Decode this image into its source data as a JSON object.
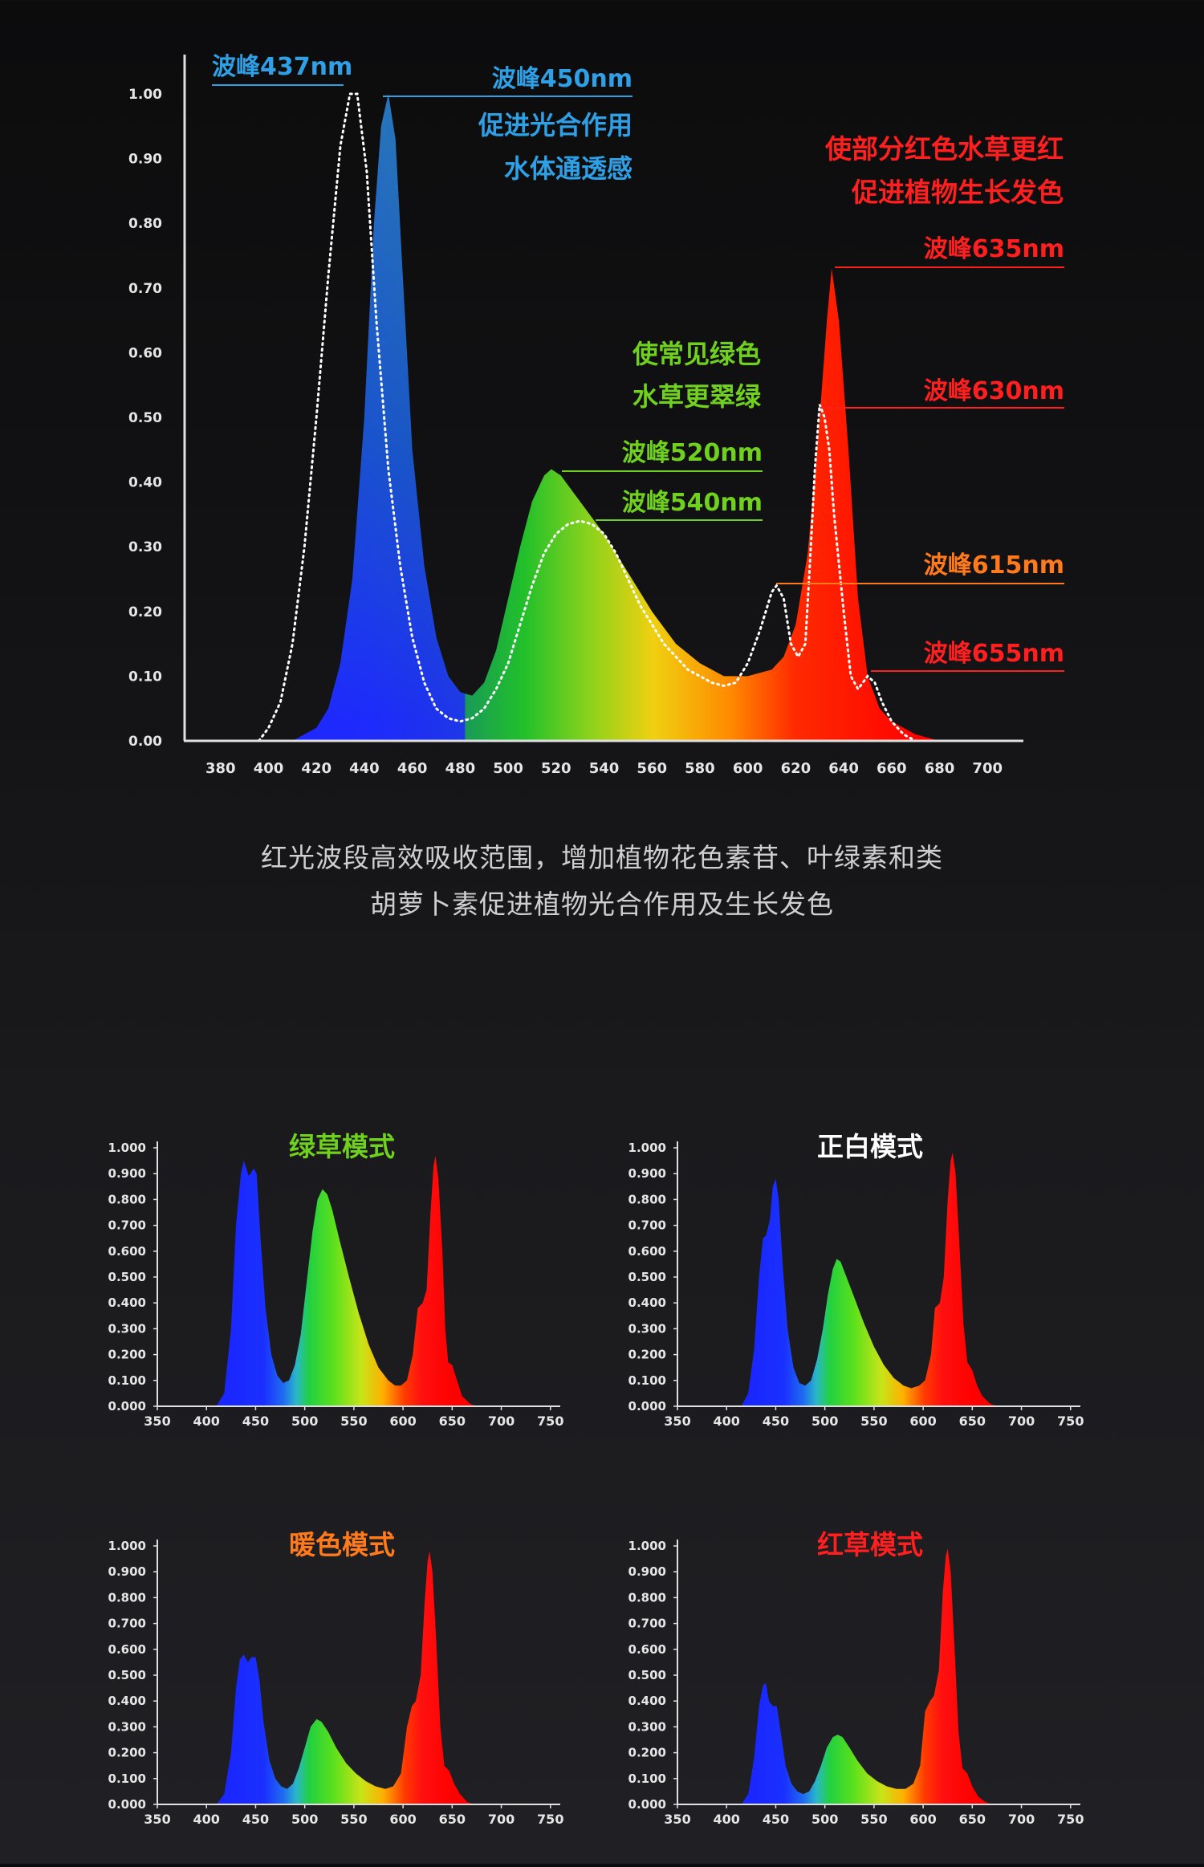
{
  "main_chart": {
    "x_ticks": [
      380,
      400,
      420,
      440,
      460,
      480,
      500,
      520,
      540,
      560,
      580,
      600,
      620,
      640,
      660,
      680,
      700
    ],
    "y_ticks": [
      "0.00",
      "0.10",
      "0.20",
      "0.30",
      "0.40",
      "0.50",
      "0.60",
      "0.70",
      "0.80",
      "0.90",
      "1.00"
    ],
    "annotations": {
      "peak437": "波峰437nm",
      "peak450": "波峰450nm",
      "blue_line1": "促进光合作用",
      "blue_line2": "水体通透感",
      "red_line1": "使部分红色水草更红",
      "red_line2": "促进植物生长发色",
      "peak635": "波峰635nm",
      "green_line1": "使常见绿色",
      "green_line2": "水草更翠绿",
      "peak630": "波峰630nm",
      "peak520": "波峰520nm",
      "peak540": "波峰540nm",
      "peak615": "波峰615nm",
      "peak655": "波峰655nm"
    }
  },
  "caption": {
    "line1": "红光波段高效吸收范围，增加植物花色素苷、叶绿素和类",
    "line2": "胡萝卜素促进植物光合作用及生长发色"
  },
  "small_x_ticks": [
    350,
    400,
    450,
    500,
    550,
    600,
    650,
    700,
    750
  ],
  "small_y_ticks": [
    "0.000",
    "0.100",
    "0.200",
    "0.300",
    "0.400",
    "0.500",
    "0.600",
    "0.700",
    "0.800",
    "0.900",
    "1.000"
  ],
  "colors": {
    "blue_text": "#2f9fe6",
    "green_text": "#6fd11e",
    "red_text": "#ff1f1f",
    "orange_text": "#ff7a1a",
    "white_text": "#ffffff",
    "axis": "#e0e0e0"
  },
  "chart_data": [
    {
      "type": "area",
      "xlim": [
        365,
        715
      ],
      "ylim": [
        0,
        1.0
      ],
      "series": [
        {
          "style": "filled spectrum",
          "points": [
            [
              410,
              0
            ],
            [
              420,
              0.02
            ],
            [
              425,
              0.05
            ],
            [
              430,
              0.12
            ],
            [
              435,
              0.25
            ],
            [
              440,
              0.5
            ],
            [
              444,
              0.8
            ],
            [
              447,
              0.95
            ],
            [
              450,
              1.0
            ],
            [
              453,
              0.93
            ],
            [
              456,
              0.72
            ],
            [
              460,
              0.45
            ],
            [
              465,
              0.27
            ],
            [
              470,
              0.16
            ],
            [
              475,
              0.1
            ],
            [
              480,
              0.075
            ],
            [
              485,
              0.07
            ],
            [
              490,
              0.09
            ],
            [
              495,
              0.14
            ],
            [
              500,
              0.22
            ],
            [
              505,
              0.3
            ],
            [
              510,
              0.37
            ],
            [
              515,
              0.41
            ],
            [
              518,
              0.42
            ],
            [
              522,
              0.41
            ],
            [
              530,
              0.37
            ],
            [
              540,
              0.32
            ],
            [
              550,
              0.26
            ],
            [
              560,
              0.2
            ],
            [
              570,
              0.15
            ],
            [
              580,
              0.12
            ],
            [
              590,
              0.1
            ],
            [
              600,
              0.1
            ],
            [
              610,
              0.11
            ],
            [
              615,
              0.13
            ],
            [
              620,
              0.18
            ],
            [
              625,
              0.29
            ],
            [
              630,
              0.5
            ],
            [
              633,
              0.65
            ],
            [
              635,
              0.73
            ],
            [
              638,
              0.65
            ],
            [
              642,
              0.45
            ],
            [
              646,
              0.22
            ],
            [
              650,
              0.1
            ],
            [
              655,
              0.05
            ],
            [
              660,
              0.03
            ],
            [
              670,
              0.01
            ],
            [
              680,
              0
            ]
          ]
        },
        {
          "style": "dotted white line",
          "points": [
            [
              396,
              0
            ],
            [
              400,
              0.02
            ],
            [
              405,
              0.06
            ],
            [
              410,
              0.15
            ],
            [
              415,
              0.3
            ],
            [
              420,
              0.5
            ],
            [
              425,
              0.72
            ],
            [
              430,
              0.92
            ],
            [
              434,
              1.0
            ],
            [
              437,
              1.0
            ],
            [
              441,
              0.88
            ],
            [
              445,
              0.65
            ],
            [
              450,
              0.42
            ],
            [
              455,
              0.27
            ],
            [
              460,
              0.16
            ],
            [
              465,
              0.09
            ],
            [
              470,
              0.05
            ],
            [
              475,
              0.035
            ],
            [
              480,
              0.03
            ],
            [
              485,
              0.035
            ],
            [
              490,
              0.05
            ],
            [
              495,
              0.08
            ],
            [
              500,
              0.12
            ],
            [
              505,
              0.18
            ],
            [
              510,
              0.24
            ],
            [
              515,
              0.29
            ],
            [
              520,
              0.32
            ],
            [
              525,
              0.335
            ],
            [
              530,
              0.34
            ],
            [
              535,
              0.335
            ],
            [
              540,
              0.32
            ],
            [
              545,
              0.29
            ],
            [
              550,
              0.25
            ],
            [
              555,
              0.21
            ],
            [
              560,
              0.18
            ],
            [
              565,
              0.15
            ],
            [
              570,
              0.13
            ],
            [
              575,
              0.11
            ],
            [
              580,
              0.1
            ],
            [
              585,
              0.09
            ],
            [
              590,
              0.085
            ],
            [
              595,
              0.09
            ],
            [
              600,
              0.12
            ],
            [
              605,
              0.17
            ],
            [
              610,
              0.23
            ],
            [
              612,
              0.24
            ],
            [
              615,
              0.22
            ],
            [
              618,
              0.15
            ],
            [
              621,
              0.13
            ],
            [
              624,
              0.15
            ],
            [
              626,
              0.28
            ],
            [
              628,
              0.42
            ],
            [
              630,
              0.52
            ],
            [
              632,
              0.5
            ],
            [
              634,
              0.45
            ],
            [
              636,
              0.35
            ],
            [
              640,
              0.2
            ],
            [
              643,
              0.1
            ],
            [
              646,
              0.08
            ],
            [
              650,
              0.1
            ],
            [
              653,
              0.09
            ],
            [
              656,
              0.06
            ],
            [
              660,
              0.03
            ],
            [
              665,
              0.01
            ],
            [
              670,
              0
            ]
          ]
        }
      ]
    },
    {
      "type": "area",
      "title": "绿草模式",
      "xlim": [
        350,
        760
      ],
      "ylim": [
        0,
        1.0
      ],
      "points": [
        [
          410,
          0
        ],
        [
          418,
          0.05
        ],
        [
          425,
          0.3
        ],
        [
          430,
          0.7
        ],
        [
          435,
          0.9
        ],
        [
          438,
          0.95
        ],
        [
          443,
          0.89
        ],
        [
          448,
          0.92
        ],
        [
          451,
          0.9
        ],
        [
          455,
          0.65
        ],
        [
          460,
          0.38
        ],
        [
          466,
          0.2
        ],
        [
          472,
          0.12
        ],
        [
          478,
          0.09
        ],
        [
          484,
          0.1
        ],
        [
          490,
          0.16
        ],
        [
          496,
          0.28
        ],
        [
          502,
          0.48
        ],
        [
          508,
          0.68
        ],
        [
          513,
          0.8
        ],
        [
          518,
          0.84
        ],
        [
          523,
          0.82
        ],
        [
          528,
          0.76
        ],
        [
          535,
          0.65
        ],
        [
          545,
          0.5
        ],
        [
          555,
          0.36
        ],
        [
          565,
          0.24
        ],
        [
          575,
          0.15
        ],
        [
          585,
          0.1
        ],
        [
          592,
          0.08
        ],
        [
          598,
          0.08
        ],
        [
          604,
          0.1
        ],
        [
          610,
          0.2
        ],
        [
          615,
          0.38
        ],
        [
          620,
          0.4
        ],
        [
          624,
          0.45
        ],
        [
          628,
          0.75
        ],
        [
          631,
          0.93
        ],
        [
          633,
          0.97
        ],
        [
          636,
          0.88
        ],
        [
          640,
          0.6
        ],
        [
          643,
          0.3
        ],
        [
          646,
          0.17
        ],
        [
          650,
          0.16
        ],
        [
          655,
          0.1
        ],
        [
          660,
          0.04
        ],
        [
          668,
          0.01
        ],
        [
          675,
          0
        ]
      ]
    },
    {
      "type": "area",
      "title": "正白模式",
      "xlim": [
        350,
        760
      ],
      "ylim": [
        0,
        1.0
      ],
      "points": [
        [
          415,
          0
        ],
        [
          422,
          0.05
        ],
        [
          428,
          0.22
        ],
        [
          433,
          0.5
        ],
        [
          437,
          0.65
        ],
        [
          440,
          0.66
        ],
        [
          444,
          0.72
        ],
        [
          447,
          0.85
        ],
        [
          450,
          0.88
        ],
        [
          453,
          0.8
        ],
        [
          457,
          0.55
        ],
        [
          462,
          0.3
        ],
        [
          468,
          0.15
        ],
        [
          474,
          0.09
        ],
        [
          480,
          0.08
        ],
        [
          486,
          0.1
        ],
        [
          492,
          0.18
        ],
        [
          498,
          0.3
        ],
        [
          503,
          0.43
        ],
        [
          508,
          0.53
        ],
        [
          512,
          0.57
        ],
        [
          516,
          0.56
        ],
        [
          522,
          0.5
        ],
        [
          530,
          0.42
        ],
        [
          540,
          0.32
        ],
        [
          550,
          0.23
        ],
        [
          560,
          0.16
        ],
        [
          570,
          0.11
        ],
        [
          580,
          0.08
        ],
        [
          588,
          0.07
        ],
        [
          596,
          0.08
        ],
        [
          602,
          0.1
        ],
        [
          608,
          0.2
        ],
        [
          612,
          0.38
        ],
        [
          617,
          0.4
        ],
        [
          621,
          0.5
        ],
        [
          625,
          0.8
        ],
        [
          628,
          0.95
        ],
        [
          630,
          0.98
        ],
        [
          633,
          0.9
        ],
        [
          637,
          0.62
        ],
        [
          641,
          0.32
        ],
        [
          645,
          0.17
        ],
        [
          650,
          0.14
        ],
        [
          655,
          0.08
        ],
        [
          660,
          0.04
        ],
        [
          668,
          0.01
        ],
        [
          675,
          0
        ]
      ]
    },
    {
      "type": "area",
      "title": "暖色模式",
      "xlim": [
        350,
        760
      ],
      "ylim": [
        0,
        1.0
      ],
      "points": [
        [
          410,
          0
        ],
        [
          418,
          0.04
        ],
        [
          425,
          0.2
        ],
        [
          430,
          0.45
        ],
        [
          434,
          0.56
        ],
        [
          438,
          0.58
        ],
        [
          442,
          0.55
        ],
        [
          446,
          0.57
        ],
        [
          450,
          0.57
        ],
        [
          454,
          0.48
        ],
        [
          458,
          0.32
        ],
        [
          464,
          0.17
        ],
        [
          470,
          0.1
        ],
        [
          476,
          0.07
        ],
        [
          482,
          0.06
        ],
        [
          488,
          0.08
        ],
        [
          494,
          0.14
        ],
        [
          500,
          0.22
        ],
        [
          506,
          0.3
        ],
        [
          512,
          0.33
        ],
        [
          517,
          0.32
        ],
        [
          524,
          0.28
        ],
        [
          532,
          0.22
        ],
        [
          542,
          0.16
        ],
        [
          552,
          0.12
        ],
        [
          562,
          0.09
        ],
        [
          572,
          0.07
        ],
        [
          582,
          0.06
        ],
        [
          590,
          0.07
        ],
        [
          598,
          0.12
        ],
        [
          604,
          0.3
        ],
        [
          609,
          0.38
        ],
        [
          613,
          0.4
        ],
        [
          618,
          0.5
        ],
        [
          622,
          0.78
        ],
        [
          625,
          0.94
        ],
        [
          627,
          0.98
        ],
        [
          630,
          0.9
        ],
        [
          634,
          0.62
        ],
        [
          638,
          0.3
        ],
        [
          642,
          0.15
        ],
        [
          647,
          0.13
        ],
        [
          652,
          0.08
        ],
        [
          658,
          0.04
        ],
        [
          665,
          0.01
        ],
        [
          672,
          0
        ]
      ]
    },
    {
      "type": "area",
      "title": "红草模式",
      "xlim": [
        350,
        760
      ],
      "ylim": [
        0,
        1.0
      ],
      "points": [
        [
          415,
          0
        ],
        [
          422,
          0.04
        ],
        [
          428,
          0.18
        ],
        [
          433,
          0.38
        ],
        [
          437,
          0.46
        ],
        [
          440,
          0.47
        ],
        [
          443,
          0.4
        ],
        [
          447,
          0.38
        ],
        [
          451,
          0.38
        ],
        [
          455,
          0.28
        ],
        [
          460,
          0.15
        ],
        [
          466,
          0.08
        ],
        [
          472,
          0.05
        ],
        [
          478,
          0.04
        ],
        [
          484,
          0.05
        ],
        [
          490,
          0.09
        ],
        [
          496,
          0.15
        ],
        [
          502,
          0.22
        ],
        [
          508,
          0.26
        ],
        [
          513,
          0.27
        ],
        [
          518,
          0.26
        ],
        [
          525,
          0.22
        ],
        [
          533,
          0.17
        ],
        [
          543,
          0.12
        ],
        [
          553,
          0.09
        ],
        [
          563,
          0.07
        ],
        [
          573,
          0.06
        ],
        [
          582,
          0.06
        ],
        [
          590,
          0.08
        ],
        [
          597,
          0.15
        ],
        [
          602,
          0.36
        ],
        [
          607,
          0.4
        ],
        [
          611,
          0.42
        ],
        [
          616,
          0.52
        ],
        [
          620,
          0.82
        ],
        [
          623,
          0.96
        ],
        [
          625,
          0.99
        ],
        [
          628,
          0.9
        ],
        [
          632,
          0.6
        ],
        [
          636,
          0.28
        ],
        [
          640,
          0.14
        ],
        [
          645,
          0.12
        ],
        [
          650,
          0.07
        ],
        [
          656,
          0.03
        ],
        [
          663,
          0.01
        ],
        [
          670,
          0
        ]
      ]
    }
  ]
}
